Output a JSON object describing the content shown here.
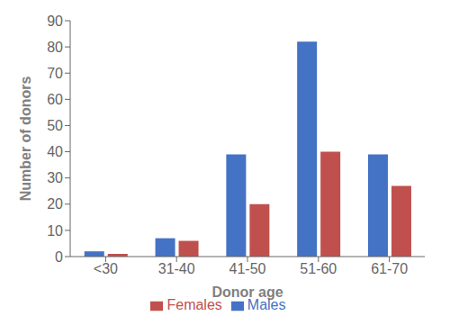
{
  "chart_data": {
    "type": "bar",
    "categories": [
      "<30",
      "31-40",
      "41-50",
      "51-60",
      "61-70"
    ],
    "series": [
      {
        "name": "Males",
        "color": "#4472C4",
        "values": [
          2,
          7,
          39,
          82,
          39
        ]
      },
      {
        "name": "Females",
        "color": "#C0504D",
        "values": [
          1,
          6,
          20,
          40,
          27
        ]
      }
    ],
    "xlabel": "Donor age",
    "ylabel": "Number of donors",
    "ylim": [
      0,
      90
    ],
    "yticks": [
      0,
      10,
      20,
      30,
      40,
      50,
      60,
      70,
      80,
      90
    ],
    "grid": false,
    "legend": "bottom"
  }
}
